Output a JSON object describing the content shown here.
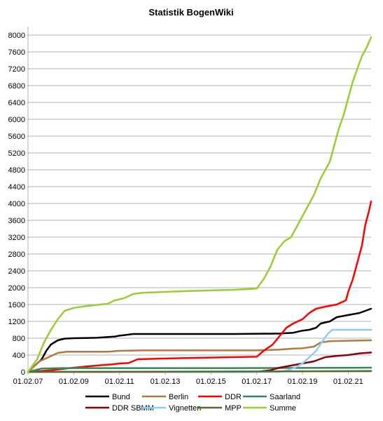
{
  "chart_data": {
    "type": "line",
    "title": "Statistik BogenWiki",
    "xlabel": "",
    "ylabel": "",
    "xlim": [
      2007.0,
      2022.0
    ],
    "ylim": [
      0,
      8200
    ],
    "y_ticks": [
      0,
      400,
      800,
      1200,
      1600,
      2000,
      2400,
      2800,
      3200,
      3600,
      4000,
      4400,
      4800,
      5200,
      5600,
      6000,
      6400,
      6800,
      7200,
      7600,
      8000
    ],
    "x_ticks": [
      {
        "value": 2007.0,
        "label": "01.02.07"
      },
      {
        "value": 2009.0,
        "label": "01.02.09"
      },
      {
        "value": 2011.0,
        "label": "01.02.11"
      },
      {
        "value": 2013.0,
        "label": "01.02.13"
      },
      {
        "value": 2015.0,
        "label": "01.02.15"
      },
      {
        "value": 2017.0,
        "label": "01.02.17"
      },
      {
        "value": 2019.0,
        "label": "01.02.19"
      },
      {
        "value": 2021.0,
        "label": "01.02.21"
      }
    ],
    "grid": "horizontal",
    "legend_position": "bottom",
    "series": [
      {
        "name": "Bund",
        "color": "#000000",
        "points": [
          [
            2007.0,
            0
          ],
          [
            2007.3,
            150
          ],
          [
            2007.6,
            300
          ],
          [
            2007.8,
            500
          ],
          [
            2008.0,
            650
          ],
          [
            2008.3,
            750
          ],
          [
            2008.6,
            790
          ],
          [
            2009.0,
            800
          ],
          [
            2010.0,
            810
          ],
          [
            2010.8,
            840
          ],
          [
            2011.0,
            860
          ],
          [
            2011.3,
            880
          ],
          [
            2011.6,
            900
          ],
          [
            2012.0,
            900
          ],
          [
            2014.0,
            900
          ],
          [
            2016.0,
            900
          ],
          [
            2018.0,
            910
          ],
          [
            2018.6,
            930
          ],
          [
            2019.0,
            980
          ],
          [
            2019.3,
            1000
          ],
          [
            2019.6,
            1050
          ],
          [
            2019.8,
            1150
          ],
          [
            2020.2,
            1200
          ],
          [
            2020.5,
            1300
          ],
          [
            2021.0,
            1350
          ],
          [
            2021.5,
            1400
          ],
          [
            2022.0,
            1500
          ]
        ]
      },
      {
        "name": "Berlin",
        "color": "#b07a3f",
        "points": [
          [
            2007.0,
            0
          ],
          [
            2007.5,
            250
          ],
          [
            2007.9,
            350
          ],
          [
            2008.3,
            450
          ],
          [
            2008.7,
            480
          ],
          [
            2009.5,
            480
          ],
          [
            2010.5,
            480
          ],
          [
            2011.0,
            500
          ],
          [
            2012.0,
            510
          ],
          [
            2014.0,
            510
          ],
          [
            2016.0,
            510
          ],
          [
            2017.0,
            510
          ],
          [
            2018.0,
            530
          ],
          [
            2018.5,
            550
          ],
          [
            2019.0,
            560
          ],
          [
            2019.5,
            600
          ],
          [
            2019.8,
            700
          ],
          [
            2020.2,
            730
          ],
          [
            2021.0,
            740
          ],
          [
            2022.0,
            750
          ]
        ]
      },
      {
        "name": "DDR",
        "color": "#ff0000",
        "points": [
          [
            2007.0,
            0
          ],
          [
            2008.0,
            40
          ],
          [
            2009.0,
            100
          ],
          [
            2010.0,
            150
          ],
          [
            2010.7,
            180
          ],
          [
            2011.0,
            200
          ],
          [
            2011.4,
            210
          ],
          [
            2011.8,
            300
          ],
          [
            2012.5,
            310
          ],
          [
            2014.0,
            330
          ],
          [
            2016.0,
            350
          ],
          [
            2017.0,
            360
          ],
          [
            2017.3,
            500
          ],
          [
            2017.7,
            650
          ],
          [
            2018.0,
            850
          ],
          [
            2018.3,
            1050
          ],
          [
            2018.6,
            1150
          ],
          [
            2019.0,
            1250
          ],
          [
            2019.3,
            1400
          ],
          [
            2019.6,
            1500
          ],
          [
            2020.0,
            1550
          ],
          [
            2020.5,
            1600
          ],
          [
            2020.9,
            1700
          ],
          [
            2021.0,
            1900
          ],
          [
            2021.2,
            2200
          ],
          [
            2021.4,
            2600
          ],
          [
            2021.6,
            3000
          ],
          [
            2021.75,
            3500
          ],
          [
            2021.9,
            3800
          ],
          [
            2022.0,
            4050
          ]
        ]
      },
      {
        "name": "Saarland",
        "color": "#2e8b57",
        "points": [
          [
            2007.0,
            0
          ],
          [
            2007.6,
            80
          ],
          [
            2008.5,
            90
          ],
          [
            2012.0,
            90
          ],
          [
            2016.0,
            90
          ],
          [
            2020.0,
            95
          ],
          [
            2022.0,
            100
          ]
        ]
      },
      {
        "name": "DDR SBMM",
        "color": "#8b0000",
        "points": [
          [
            2007.0,
            0
          ],
          [
            2017.0,
            0
          ],
          [
            2017.3,
            20
          ],
          [
            2017.6,
            40
          ],
          [
            2018.0,
            100
          ],
          [
            2018.5,
            150
          ],
          [
            2019.0,
            200
          ],
          [
            2019.5,
            250
          ],
          [
            2020.0,
            350
          ],
          [
            2020.5,
            380
          ],
          [
            2021.0,
            400
          ],
          [
            2021.5,
            440
          ],
          [
            2022.0,
            460
          ]
        ]
      },
      {
        "name": "Vignetten",
        "color": "#87cefa",
        "points": [
          [
            2007.0,
            0
          ],
          [
            2018.0,
            0
          ],
          [
            2018.3,
            30
          ],
          [
            2018.6,
            80
          ],
          [
            2019.0,
            200
          ],
          [
            2019.3,
            350
          ],
          [
            2019.6,
            500
          ],
          [
            2019.9,
            750
          ],
          [
            2020.1,
            900
          ],
          [
            2020.3,
            1000
          ],
          [
            2021.0,
            1000
          ],
          [
            2022.0,
            1000
          ]
        ]
      },
      {
        "name": "MPP",
        "color": "#556b2f",
        "points": [
          [
            2007.0,
            0
          ],
          [
            2012.0,
            5
          ],
          [
            2017.0,
            10
          ],
          [
            2022.0,
            20
          ]
        ]
      },
      {
        "name": "Summe",
        "color": "#9acd32",
        "points": [
          [
            2007.0,
            0
          ],
          [
            2007.4,
            300
          ],
          [
            2007.7,
            700
          ],
          [
            2008.0,
            1000
          ],
          [
            2008.3,
            1250
          ],
          [
            2008.6,
            1450
          ],
          [
            2009.0,
            1520
          ],
          [
            2009.5,
            1560
          ],
          [
            2010.5,
            1620
          ],
          [
            2010.8,
            1700
          ],
          [
            2011.2,
            1750
          ],
          [
            2011.6,
            1850
          ],
          [
            2012.0,
            1880
          ],
          [
            2014.0,
            1920
          ],
          [
            2016.0,
            1950
          ],
          [
            2017.0,
            1980
          ],
          [
            2017.3,
            2200
          ],
          [
            2017.6,
            2500
          ],
          [
            2017.9,
            2900
          ],
          [
            2018.2,
            3100
          ],
          [
            2018.5,
            3200
          ],
          [
            2018.8,
            3500
          ],
          [
            2019.0,
            3700
          ],
          [
            2019.2,
            3900
          ],
          [
            2019.5,
            4200
          ],
          [
            2019.8,
            4600
          ],
          [
            2020.0,
            4800
          ],
          [
            2020.2,
            5000
          ],
          [
            2020.4,
            5400
          ],
          [
            2020.6,
            5800
          ],
          [
            2020.8,
            6100
          ],
          [
            2021.0,
            6500
          ],
          [
            2021.2,
            6900
          ],
          [
            2021.4,
            7200
          ],
          [
            2021.6,
            7500
          ],
          [
            2021.8,
            7700
          ],
          [
            2022.0,
            7950
          ]
        ]
      }
    ]
  }
}
